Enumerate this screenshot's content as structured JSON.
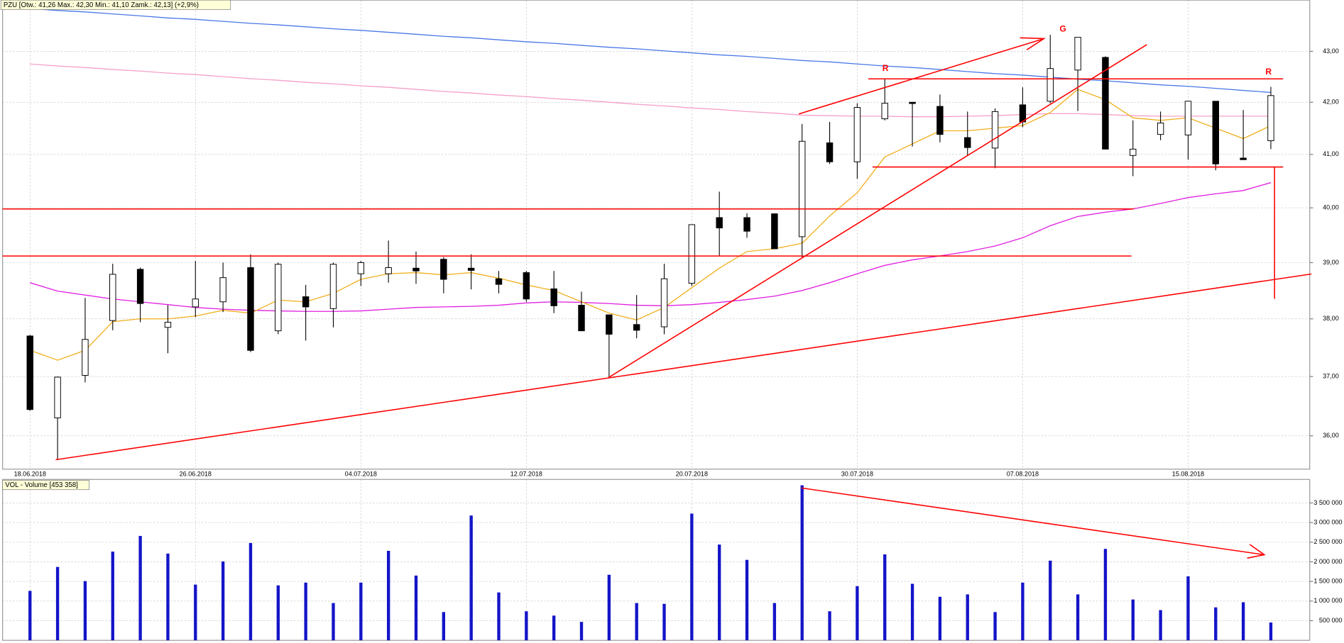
{
  "chart_data": [
    {
      "type": "candlestick",
      "title": "PZU [Otw.: 41,26  Max.: 42,30  Min.: 41,10  Zamk.: 42,13]  (+2,9%)",
      "log_scale": true,
      "grid": true,
      "up_color": "#ffffff",
      "down_color": "#000000",
      "annotations": [
        "R",
        "G",
        "R"
      ],
      "categories": [
        "18.06.2018",
        null,
        null,
        null,
        null,
        null,
        "26.06.2018",
        null,
        null,
        null,
        null,
        null,
        "04.07.2018",
        null,
        null,
        null,
        null,
        null,
        "12.07.2018",
        null,
        null,
        null,
        null,
        null,
        "20.07.2018",
        null,
        null,
        null,
        null,
        null,
        "30.07.2018",
        null,
        null,
        null,
        null,
        null,
        "07.08.2018",
        null,
        null,
        null,
        null,
        null,
        "15.08.2018",
        null,
        null,
        null
      ],
      "open": [
        37.7,
        36.3,
        37.02,
        37.97,
        38.88,
        37.85,
        38.21,
        38.3,
        38.91,
        37.79,
        38.39,
        38.18,
        38.8,
        38.8,
        38.9,
        39.06,
        38.9,
        38.71,
        38.82,
        38.53,
        38.24,
        38.07,
        37.9,
        37.86,
        38.63,
        39.82,
        39.82,
        39.89,
        39.47,
        41.22,
        40.86,
        41.68,
        42.0,
        41.92,
        41.32,
        41.12,
        41.95,
        42.02,
        42.63,
        42.88,
        40.98,
        41.38,
        41.37,
        42.02,
        40.93,
        41.26
      ],
      "high": [
        37.72,
        37.0,
        38.37,
        38.98,
        38.91,
        38.24,
        39.03,
        39.0,
        39.15,
        39.0,
        38.6,
        39.0,
        39.03,
        39.4,
        39.2,
        39.1,
        39.15,
        38.85,
        38.85,
        38.85,
        38.48,
        38.07,
        38.42,
        38.98,
        39.69,
        40.3,
        39.9,
        39.9,
        41.58,
        41.62,
        41.98,
        42.46,
        42.0,
        42.15,
        41.82,
        41.88,
        42.29,
        43.33,
        43.28,
        42.9,
        41.65,
        41.82,
        42.02,
        42.02,
        41.85,
        42.3
      ],
      "low": [
        36.42,
        35.6,
        36.9,
        37.8,
        37.94,
        37.4,
        38.03,
        38.12,
        37.42,
        37.73,
        37.62,
        37.85,
        38.58,
        38.64,
        38.62,
        38.45,
        38.52,
        38.45,
        38.3,
        38.1,
        37.79,
        36.98,
        37.66,
        37.73,
        38.58,
        39.12,
        39.45,
        39.25,
        39.09,
        40.82,
        40.54,
        41.65,
        41.15,
        41.23,
        40.98,
        40.74,
        41.52,
        41.98,
        41.83,
        41.1,
        40.59,
        41.27,
        40.9,
        40.7,
        40.9,
        41.1
      ],
      "close": [
        36.44,
        36.99,
        37.64,
        38.79,
        38.27,
        37.94,
        38.35,
        38.73,
        37.45,
        38.97,
        38.21,
        38.97,
        39.0,
        38.91,
        38.85,
        38.7,
        38.86,
        38.61,
        38.35,
        38.23,
        37.79,
        37.73,
        37.8,
        38.71,
        39.69,
        39.63,
        39.57,
        39.25,
        41.25,
        40.86,
        41.9,
        41.98,
        41.98,
        41.38,
        41.13,
        41.82,
        41.62,
        42.66,
        43.28,
        41.1,
        41.1,
        41.6,
        42.02,
        40.82,
        40.9,
        42.13
      ],
      "series": [
        {
          "color": "#4a78e8",
          "values": [
            43.86,
            43.82,
            43.79,
            43.75,
            43.71,
            43.67,
            43.64,
            43.6,
            43.56,
            43.53,
            43.49,
            43.45,
            43.42,
            43.38,
            43.34,
            43.3,
            43.27,
            43.23,
            43.19,
            43.16,
            43.12,
            43.08,
            43.05,
            43.01,
            42.97,
            42.93,
            42.9,
            42.86,
            42.82,
            42.79,
            42.75,
            42.71,
            42.68,
            42.64,
            42.6,
            42.56,
            42.53,
            42.49,
            42.45,
            42.42,
            42.38,
            42.34,
            42.31,
            42.27,
            42.23,
            42.19
          ]
        },
        {
          "color": "#f4a0c8",
          "values": [
            42.75,
            42.71,
            42.68,
            42.64,
            42.61,
            42.57,
            42.54,
            42.5,
            42.46,
            42.43,
            42.39,
            42.36,
            42.32,
            42.29,
            42.25,
            42.21,
            42.18,
            42.14,
            42.11,
            42.07,
            42.04,
            42.0,
            41.96,
            41.93,
            41.89,
            41.86,
            41.82,
            41.79,
            41.75,
            41.74,
            41.73,
            41.73,
            41.72,
            41.72,
            41.73,
            41.74,
            41.76,
            41.78,
            41.78,
            41.76,
            41.74,
            41.73,
            41.73,
            41.73,
            41.73,
            41.73
          ]
        },
        {
          "color": "#e020e0",
          "values": [
            38.64,
            38.49,
            38.42,
            38.35,
            38.3,
            38.25,
            38.2,
            38.17,
            38.15,
            38.14,
            38.13,
            38.13,
            38.14,
            38.17,
            38.2,
            38.21,
            38.22,
            38.24,
            38.28,
            38.3,
            38.29,
            38.27,
            38.24,
            38.23,
            38.25,
            38.29,
            38.34,
            38.4,
            38.5,
            38.64,
            38.8,
            38.95,
            39.05,
            39.12,
            39.2,
            39.3,
            39.45,
            39.67,
            39.84,
            39.92,
            39.98,
            40.08,
            40.19,
            40.26,
            40.32,
            40.47
          ]
        },
        {
          "color": "#f0b020",
          "values": [
            37.45,
            37.28,
            37.45,
            37.95,
            38.0,
            38.0,
            38.05,
            38.15,
            38.1,
            38.33,
            38.3,
            38.45,
            38.7,
            38.8,
            38.82,
            38.78,
            38.82,
            38.72,
            38.6,
            38.5,
            38.3,
            38.1,
            37.98,
            38.2,
            38.55,
            38.9,
            39.2,
            39.25,
            39.35,
            39.85,
            40.28,
            40.95,
            41.2,
            41.45,
            41.45,
            41.5,
            41.55,
            41.8,
            42.25,
            42.05,
            41.7,
            41.65,
            41.7,
            41.5,
            41.3,
            41.55
          ]
        }
      ],
      "ylim": [
        35.45,
        44.03
      ],
      "yticks": [
        {
          "value": 36,
          "label": "36,00"
        },
        {
          "value": 37,
          "label": "37,00"
        },
        {
          "value": 38,
          "label": "38,00"
        },
        {
          "value": 39,
          "label": "39,00"
        },
        {
          "value": 40,
          "label": "40,00"
        },
        {
          "value": 41,
          "label": "41,00"
        },
        {
          "value": 42,
          "label": "42,00"
        },
        {
          "value": 43,
          "label": "43,00"
        }
      ]
    },
    {
      "type": "bar",
      "title": "VOL - Volume [453 358]",
      "color": "#1414c8",
      "grid": true,
      "values": [
        1260000,
        1870000,
        1510000,
        2260000,
        2660000,
        2210000,
        1420000,
        2010000,
        2480000,
        1400000,
        1470000,
        950000,
        1470000,
        2280000,
        1650000,
        720000,
        3180000,
        1220000,
        740000,
        630000,
        470000,
        1670000,
        950000,
        930000,
        3230000,
        2440000,
        2050000,
        950000,
        3950000,
        740000,
        1380000,
        2190000,
        1440000,
        1110000,
        1170000,
        720000,
        1470000,
        2030000,
        1170000,
        2330000,
        1040000,
        770000,
        1630000,
        840000,
        970000,
        453358
      ],
      "ylim": [
        0,
        4100000
      ],
      "yticks": [
        {
          "value": 500000,
          "label": "500 000"
        },
        {
          "value": 1000000,
          "label": "1 000 000"
        },
        {
          "value": 1500000,
          "label": "1 500 000"
        },
        {
          "value": 2000000,
          "label": "2 000 000"
        },
        {
          "value": 2500000,
          "label": "2 500 000"
        },
        {
          "value": 3000000,
          "label": "3 000 000"
        },
        {
          "value": 3500000,
          "label": "3 500 000"
        }
      ]
    }
  ]
}
